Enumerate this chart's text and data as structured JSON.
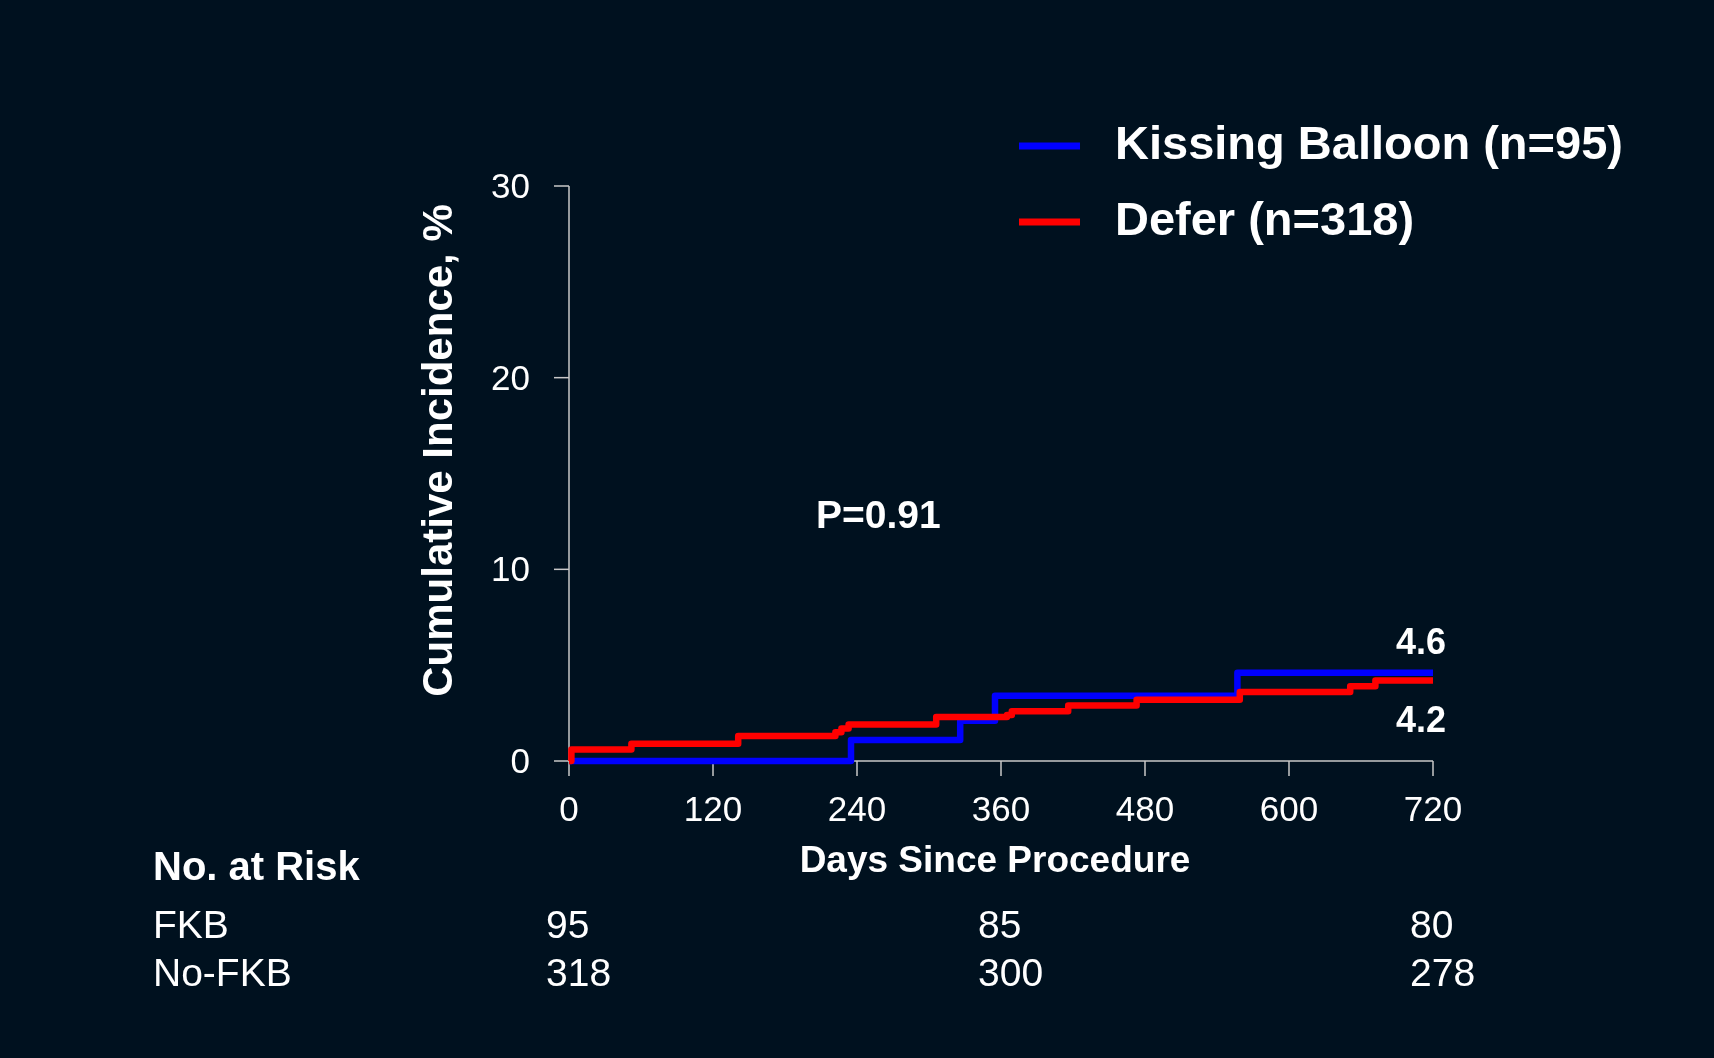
{
  "chart_data": {
    "type": "step",
    "xlabel": "Days Since Procedure",
    "ylabel": "Cumulative Incidence, %",
    "xlim": [
      0,
      720
    ],
    "xticks": [
      0,
      120,
      240,
      360,
      480,
      600,
      720
    ],
    "ylim": [
      0,
      30
    ],
    "yticks": [
      0,
      10,
      20,
      30
    ],
    "legend": "top right",
    "series": [
      {
        "name": "Kissing Balloon (n=95)",
        "color": "#0000ff",
        "x": [
          0,
          235,
          326,
          355,
          557,
          720
        ],
        "values": [
          0,
          1.1,
          2.1,
          3.4,
          4.6,
          4.6
        ],
        "value_labels": [
          null,
          null,
          null,
          null,
          null,
          "4.6"
        ]
      },
      {
        "name": "Defer (n=318)",
        "color": "#ff0000",
        "x": [
          0,
          2,
          52,
          141,
          222,
          227,
          233,
          306,
          365,
          369,
          416,
          473,
          559,
          651,
          672,
          720
        ],
        "values": [
          0,
          0.6,
          0.9,
          1.3,
          1.5,
          1.7,
          1.9,
          2.3,
          2.4,
          2.6,
          2.9,
          3.2,
          3.6,
          3.9,
          4.2,
          4.2
        ],
        "value_labels": [
          null,
          null,
          null,
          null,
          null,
          null,
          null,
          null,
          null,
          null,
          null,
          null,
          null,
          null,
          null,
          "4.2"
        ]
      }
    ],
    "annotations": [
      "P=0.91",
      "No. at Risk",
      "FKB",
      "95",
      "85",
      "80",
      "No-FKB",
      "318",
      "300",
      "278"
    ]
  }
}
